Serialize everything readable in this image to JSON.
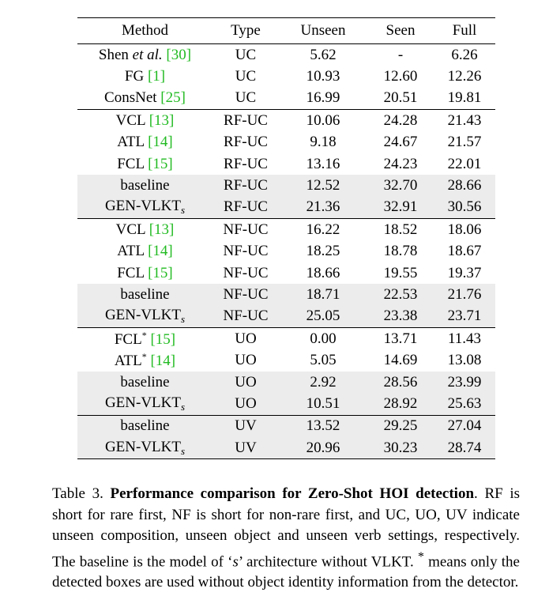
{
  "table": {
    "headers": [
      "Method",
      "Type",
      "Unseen",
      "Seen",
      "Full"
    ],
    "rows": [
      {
        "method": "Shen et al.",
        "ref": "[30]",
        "type": "UC",
        "unseen": "5.62",
        "seen": "-",
        "full": "6.26"
      },
      {
        "method": "FG",
        "ref": "[1]",
        "type": "UC",
        "unseen": "10.93",
        "seen": "12.60",
        "full": "12.26"
      },
      {
        "method": "ConsNet",
        "ref": "[25]",
        "type": "UC",
        "unseen": "16.99",
        "seen": "20.51",
        "full": "19.81"
      },
      {
        "method": "VCL",
        "ref": "[13]",
        "type": "RF-UC",
        "unseen": "10.06",
        "seen": "24.28",
        "full": "21.43"
      },
      {
        "method": "ATL",
        "ref": "[14]",
        "type": "RF-UC",
        "unseen": "9.18",
        "seen": "24.67",
        "full": "21.57"
      },
      {
        "method": "FCL",
        "ref": "[15]",
        "type": "RF-UC",
        "unseen": "13.16",
        "seen": "24.23",
        "full": "22.01"
      },
      {
        "method": "baseline",
        "type": "RF-UC",
        "unseen": "12.52",
        "seen": "32.70",
        "full": "28.66"
      },
      {
        "method": "GEN-VLKT",
        "method_sub": "s",
        "type": "RF-UC",
        "unseen": "21.36",
        "seen": "32.91",
        "full": "30.56"
      },
      {
        "method": "VCL",
        "ref": "[13]",
        "type": "NF-UC",
        "unseen": "16.22",
        "seen": "18.52",
        "full": "18.06"
      },
      {
        "method": "ATL",
        "ref": "[14]",
        "type": "NF-UC",
        "unseen": "18.25",
        "seen": "18.78",
        "full": "18.67"
      },
      {
        "method": "FCL",
        "ref": "[15]",
        "type": "NF-UC",
        "unseen": "18.66",
        "seen": "19.55",
        "full": "19.37"
      },
      {
        "method": "baseline",
        "type": "NF-UC",
        "unseen": "18.71",
        "seen": "22.53",
        "full": "21.76"
      },
      {
        "method": "GEN-VLKT",
        "method_sub": "s",
        "type": "NF-UC",
        "unseen": "25.05",
        "seen": "23.38",
        "full": "23.71"
      },
      {
        "method": "FCL",
        "method_sup": "*",
        "ref": "[15]",
        "type": "UO",
        "unseen": "0.00",
        "seen": "13.71",
        "full": "11.43"
      },
      {
        "method": "ATL",
        "method_sup": "*",
        "ref": "[14]",
        "type": "UO",
        "unseen": "5.05",
        "seen": "14.69",
        "full": "13.08"
      },
      {
        "method": "baseline",
        "type": "UO",
        "unseen": "2.92",
        "seen": "28.56",
        "full": "23.99"
      },
      {
        "method": "GEN-VLKT",
        "method_sub": "s",
        "type": "UO",
        "unseen": "10.51",
        "seen": "28.92",
        "full": "25.63"
      },
      {
        "method": "baseline",
        "type": "UV",
        "unseen": "13.52",
        "seen": "29.25",
        "full": "27.04"
      },
      {
        "method": "GEN-VLKT",
        "method_sub": "s",
        "type": "UV",
        "unseen": "20.96",
        "seen": "30.23",
        "full": "28.74"
      }
    ]
  },
  "caption": {
    "label": "Table 3.",
    "title": "Performance comparison for Zero-Shot HOI detection",
    "body_1": ". RF is short for rare first, NF is short for non-rare first, and UC, UO, UV indicate unseen composition, unseen object and unseen verb settings, respectively. The baseline is the model of ‘",
    "symbol": "s",
    "body_2": "’ architecture without VLKT. ",
    "star": "*",
    "body_3": " means only the detected boxes are used without object identity information from the detector."
  },
  "colors": {
    "reference": "#22bb22",
    "shade": "#ececec"
  }
}
